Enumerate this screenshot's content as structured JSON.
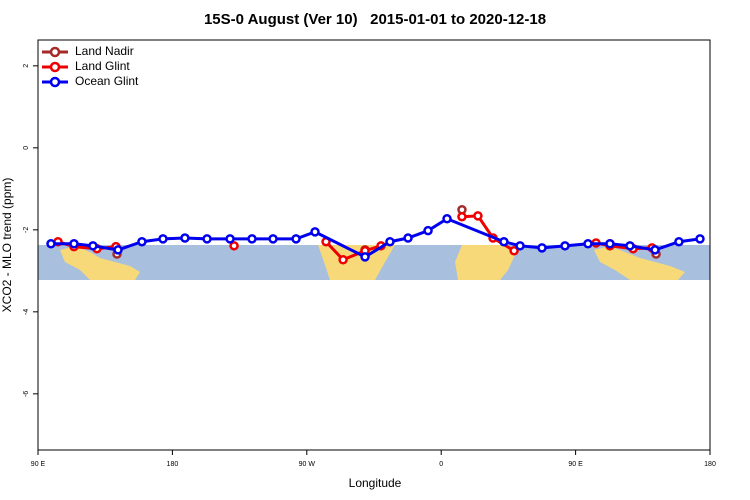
{
  "chart_data": {
    "type": "line",
    "title": "15S-0 August (Ver 10)   2015-01-01 to 2020-12-18",
    "xlabel": "Longitude",
    "ylabel": "XCO2 - MLO trend (ppm)",
    "xlim": [
      90,
      540
    ],
    "xticks": [
      {
        "value": 90,
        "label": "90 E"
      },
      {
        "value": 180,
        "label": "180"
      },
      {
        "value": 270,
        "label": "90 W"
      },
      {
        "value": 360,
        "label": "0"
      },
      {
        "value": 450,
        "label": "90 E"
      },
      {
        "value": 540,
        "label": "180"
      }
    ],
    "ylim": [
      -7.37,
      2.63
    ],
    "yticks": [
      2,
      0,
      -2,
      -4,
      -6
    ],
    "legend": "upper left",
    "series": [
      {
        "name": "Land Nadir",
        "color": "#a52a2a",
        "x": [
          142.9,
          226,
          309,
          341,
          373.9,
          423,
          473,
          488,
          503.9
        ],
        "values": [
          -2.59,
          null,
          -2.49,
          null,
          -1.51,
          null,
          -2.34,
          null,
          -2.59
        ]
      },
      {
        "name": "Land Glint",
        "color": "#ee0000",
        "x": [
          103.4,
          114.1,
          129.5,
          142.2,
          182,
          221.3,
          252,
          282.9,
          294.3,
          309,
          319.7,
          347,
          373.9,
          384.6,
          394.7,
          408.8,
          436,
          463.7,
          473,
          488.5,
          501.2
        ],
        "values": [
          -2.29,
          -2.41,
          -2.46,
          -2.41,
          null,
          -2.39,
          null,
          -2.29,
          -2.73,
          -2.51,
          -2.39,
          null,
          -1.68,
          -1.66,
          -2.2,
          -2.51,
          null,
          -2.32,
          -2.39,
          -2.46,
          -2.44
        ]
      },
      {
        "name": "Ocean Glint",
        "color": "#0000ee",
        "x": [
          98.7,
          114.1,
          126.8,
          143.6,
          159.6,
          173.7,
          188.4,
          203.2,
          218.6,
          233.3,
          247.4,
          262.8,
          275.5,
          309,
          325.7,
          337.8,
          351.2,
          363.9,
          402,
          412.8,
          427.5,
          442.9,
          458.3,
          473,
          486.4,
          503.2,
          519.2,
          533.3
        ],
        "values": [
          -2.34,
          -2.34,
          -2.39,
          -2.49,
          -2.29,
          -2.22,
          -2.2,
          -2.22,
          -2.22,
          -2.22,
          -2.22,
          -2.22,
          -2.05,
          -2.66,
          -2.29,
          -2.2,
          -2.02,
          -1.73,
          -2.29,
          -2.39,
          -2.44,
          -2.39,
          -2.34,
          -2.34,
          -2.39,
          -2.49,
          -2.29,
          -2.22
        ]
      }
    ]
  }
}
